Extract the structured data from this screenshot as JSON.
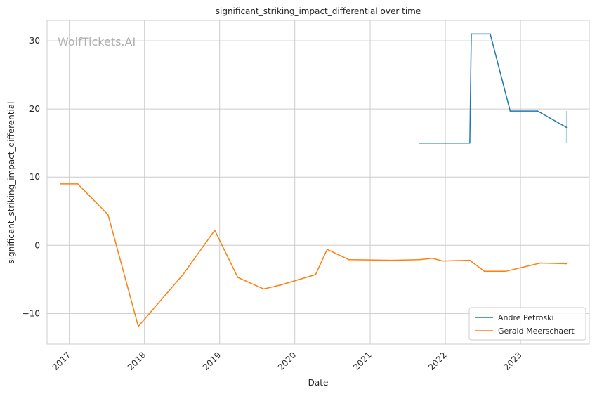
{
  "chart_data": {
    "type": "line",
    "title": "significant_striking_impact_differential over time",
    "xlabel": "Date",
    "ylabel": "significant_striking_impact_differential",
    "watermark": "WolfTickets.AI",
    "x_ticks": [
      "2017",
      "2018",
      "2019",
      "2020",
      "2021",
      "2022",
      "2023"
    ],
    "y_ticks": [
      30,
      20,
      10,
      0,
      -10
    ],
    "xlim": [
      "2016-09-15",
      "2023-12-01"
    ],
    "ylim": [
      -14.5,
      33
    ],
    "grid": true,
    "legend_position": "lower-right",
    "series": [
      {
        "name": "Andre Petroski",
        "color": "#1f77b4",
        "points": [
          [
            "2021-08-28",
            15.0
          ],
          [
            "2022-04-30",
            15.0
          ],
          [
            "2022-05-07",
            31.0
          ],
          [
            "2022-08-07",
            31.0
          ],
          [
            "2022-11-12",
            19.7
          ],
          [
            "2023-03-25",
            19.7
          ],
          [
            "2023-08-12",
            17.3
          ]
        ],
        "error_bar": {
          "x": "2023-08-12",
          "low": 15.0,
          "high": 19.7
        }
      },
      {
        "name": "Gerald Meerschaert",
        "color": "#ff7f0e",
        "points": [
          [
            "2016-11-19",
            9.0
          ],
          [
            "2017-02-11",
            9.0
          ],
          [
            "2017-07-08",
            4.5
          ],
          [
            "2017-12-02",
            -11.9
          ],
          [
            "2018-07-07",
            -4.3
          ],
          [
            "2018-12-08",
            2.2
          ],
          [
            "2019-03-30",
            -4.7
          ],
          [
            "2019-08-03",
            -6.4
          ],
          [
            "2019-10-26",
            -5.8
          ],
          [
            "2020-04-11",
            -4.3
          ],
          [
            "2020-06-06",
            -0.6
          ],
          [
            "2020-09-19",
            -2.1
          ],
          [
            "2021-04-17",
            -2.2
          ],
          [
            "2021-08-28",
            -2.1
          ],
          [
            "2021-10-30",
            -1.9
          ],
          [
            "2021-12-18",
            -2.3
          ],
          [
            "2022-04-30",
            -2.2
          ],
          [
            "2022-07-09",
            -3.8
          ],
          [
            "2022-10-22",
            -3.8
          ],
          [
            "2023-04-08",
            -2.6
          ],
          [
            "2023-08-12",
            -2.7
          ]
        ]
      }
    ]
  }
}
